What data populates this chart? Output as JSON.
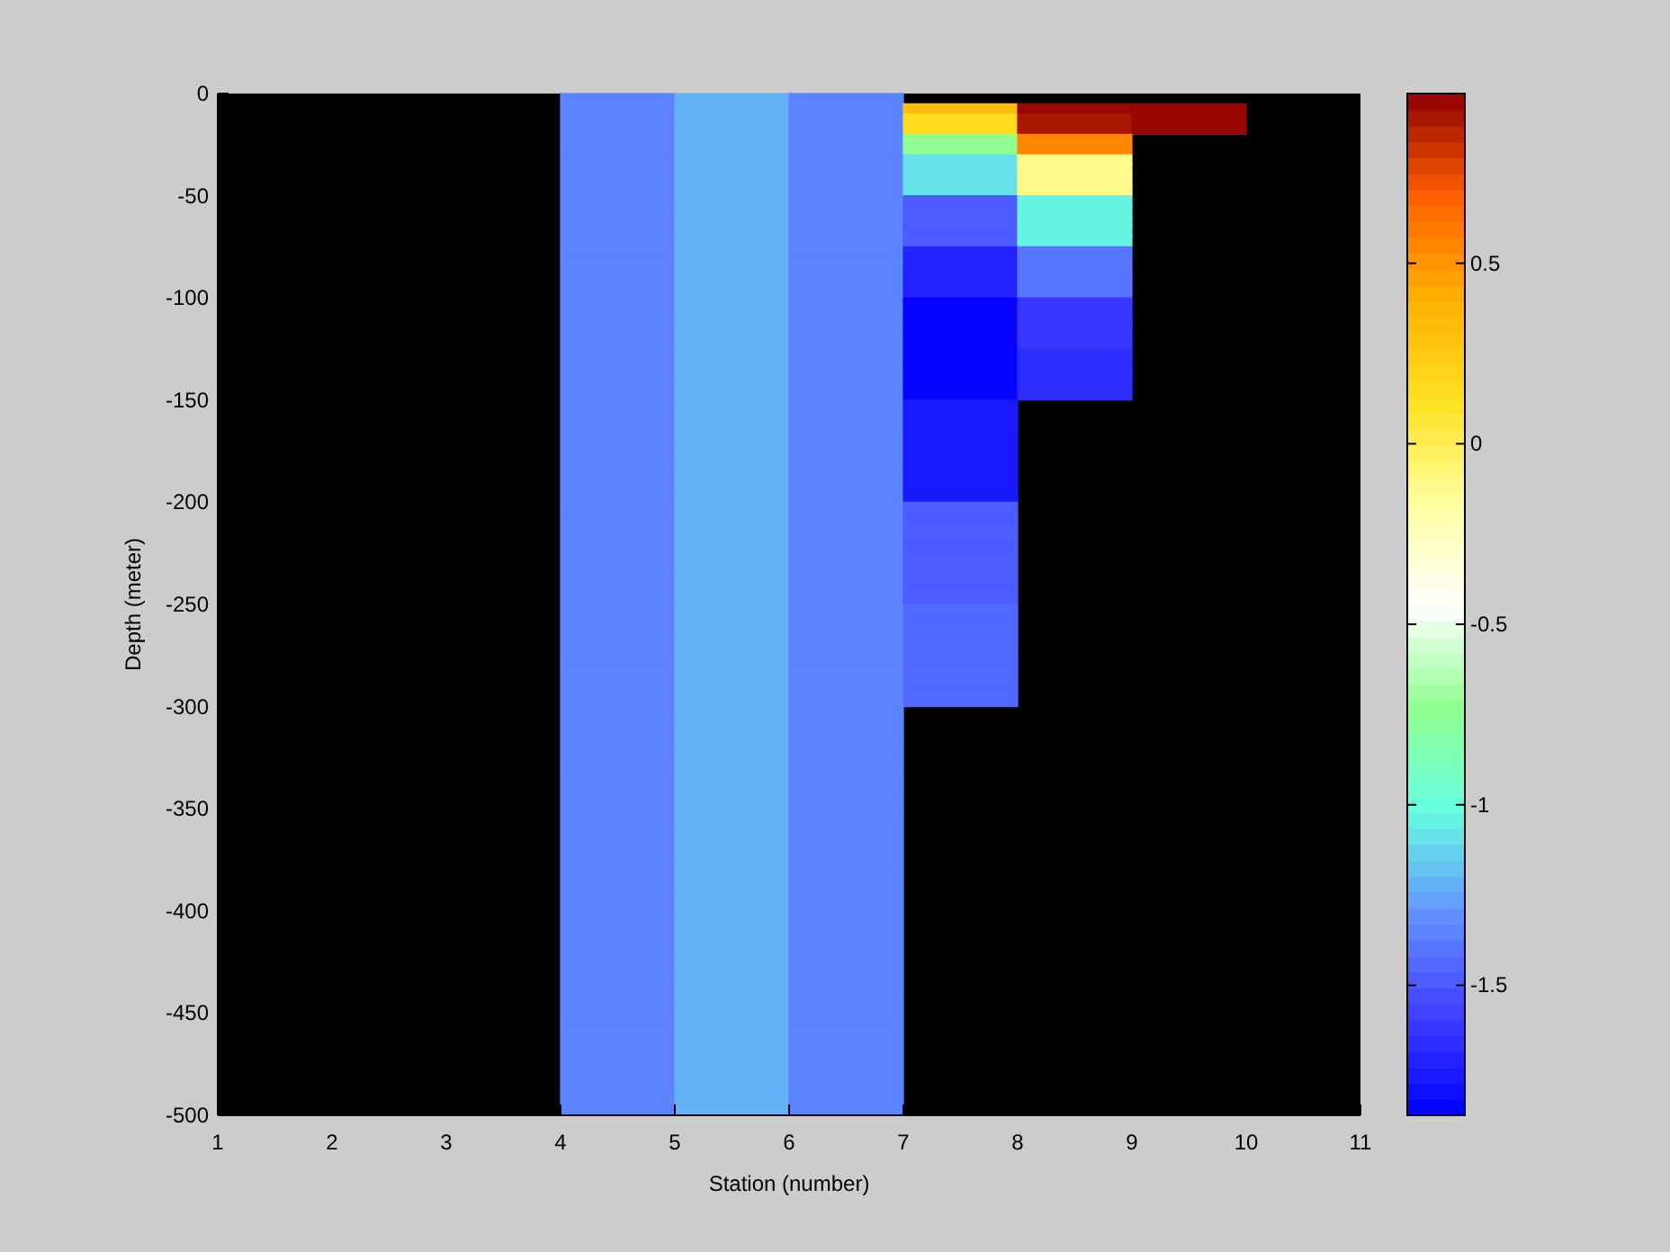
{
  "chart_data": {
    "type": "heatmap",
    "xlabel": "Station (number)",
    "ylabel": "Depth (meter)",
    "cells": [
      [
        null,
        null,
        null,
        -1.33,
        -1.2,
        -1.36,
        null,
        null,
        null,
        null
      ],
      [
        null,
        null,
        null,
        -1.33,
        -1.2,
        -1.36,
        0.35,
        0.95,
        0.95,
        null
      ],
      [
        null,
        null,
        null,
        -1.33,
        -1.2,
        -1.36,
        0.15,
        0.9,
        0.95,
        null
      ],
      [
        null,
        null,
        null,
        -1.33,
        -1.2,
        -1.36,
        0.15,
        0.9,
        0.95,
        null
      ],
      [
        null,
        null,
        null,
        -1.33,
        -1.2,
        -1.36,
        -0.72,
        0.55,
        null,
        null
      ],
      [
        null,
        null,
        null,
        -1.33,
        -1.2,
        -1.36,
        -0.72,
        0.55,
        null,
        null
      ],
      [
        null,
        null,
        null,
        -1.33,
        -1.2,
        -1.36,
        -1.1,
        -0.1,
        null,
        null
      ],
      [
        null,
        null,
        null,
        -1.33,
        -1.2,
        -1.36,
        -1.1,
        -0.1,
        null,
        null
      ],
      [
        null,
        null,
        null,
        -1.33,
        -1.2,
        -1.36,
        -1.1,
        -0.1,
        null,
        null
      ],
      [
        null,
        null,
        null,
        -1.33,
        -1.2,
        -1.36,
        -1.1,
        -0.1,
        null,
        null
      ],
      [
        null,
        null,
        null,
        -1.33,
        -1.2,
        -1.36,
        -1.5,
        -1.05,
        null,
        null
      ],
      [
        null,
        null,
        null,
        -1.33,
        -1.2,
        -1.36,
        -1.5,
        -1.05,
        null,
        null
      ],
      [
        null,
        null,
        null,
        -1.33,
        -1.2,
        -1.36,
        -1.5,
        -1.05,
        null,
        null
      ],
      [
        null,
        null,
        null,
        -1.33,
        -1.2,
        -1.36,
        -1.5,
        -1.05,
        null,
        null
      ],
      [
        null,
        null,
        null,
        -1.33,
        -1.2,
        -1.36,
        -1.5,
        -1.05,
        null,
        null
      ],
      [
        null,
        null,
        null,
        -1.33,
        -1.2,
        -1.36,
        -1.7,
        -1.4,
        null,
        null
      ],
      [
        null,
        null,
        null,
        -1.33,
        -1.2,
        -1.36,
        -1.7,
        -1.4,
        null,
        null
      ],
      [
        null,
        null,
        null,
        -1.33,
        -1.2,
        -1.36,
        -1.7,
        -1.4,
        null,
        null
      ],
      [
        null,
        null,
        null,
        -1.33,
        -1.2,
        -1.36,
        -1.7,
        -1.4,
        null,
        null
      ],
      [
        null,
        null,
        null,
        -1.33,
        -1.2,
        -1.36,
        -1.7,
        -1.4,
        null,
        null
      ],
      [
        null,
        null,
        null,
        -1.33,
        -1.2,
        -1.36,
        -1.84,
        -1.6,
        null,
        null
      ],
      [
        null,
        null,
        null,
        -1.33,
        -1.2,
        -1.36,
        -1.84,
        -1.6,
        null,
        null
      ],
      [
        null,
        null,
        null,
        -1.33,
        -1.2,
        -1.36,
        -1.84,
        -1.6,
        null,
        null
      ],
      [
        null,
        null,
        null,
        -1.33,
        -1.2,
        -1.36,
        -1.84,
        -1.6,
        null,
        null
      ],
      [
        null,
        null,
        null,
        -1.33,
        -1.2,
        -1.36,
        -1.84,
        -1.6,
        null,
        null
      ],
      [
        null,
        null,
        null,
        -1.33,
        -1.2,
        -1.36,
        -1.84,
        -1.65,
        null,
        null
      ],
      [
        null,
        null,
        null,
        -1.33,
        -1.2,
        -1.36,
        -1.84,
        -1.65,
        null,
        null
      ],
      [
        null,
        null,
        null,
        -1.33,
        -1.2,
        -1.36,
        -1.84,
        -1.65,
        null,
        null
      ],
      [
        null,
        null,
        null,
        -1.33,
        -1.2,
        -1.36,
        -1.84,
        -1.65,
        null,
        null
      ],
      [
        null,
        null,
        null,
        -1.33,
        -1.2,
        -1.36,
        -1.84,
        -1.65,
        null,
        null
      ],
      [
        null,
        null,
        null,
        -1.33,
        -1.2,
        -1.36,
        -1.75,
        null,
        null,
        null
      ],
      [
        null,
        null,
        null,
        -1.33,
        -1.2,
        -1.36,
        -1.75,
        null,
        null,
        null
      ],
      [
        null,
        null,
        null,
        -1.33,
        -1.2,
        -1.36,
        -1.75,
        null,
        null,
        null
      ],
      [
        null,
        null,
        null,
        -1.33,
        -1.2,
        -1.36,
        -1.75,
        null,
        null,
        null
      ],
      [
        null,
        null,
        null,
        -1.33,
        -1.2,
        -1.36,
        -1.75,
        null,
        null,
        null
      ],
      [
        null,
        null,
        null,
        -1.33,
        -1.2,
        -1.36,
        -1.75,
        null,
        null,
        null
      ],
      [
        null,
        null,
        null,
        -1.33,
        -1.2,
        -1.36,
        -1.75,
        null,
        null,
        null
      ],
      [
        null,
        null,
        null,
        -1.33,
        -1.2,
        -1.36,
        -1.75,
        null,
        null,
        null
      ],
      [
        null,
        null,
        null,
        -1.33,
        -1.2,
        -1.36,
        -1.75,
        null,
        null,
        null
      ],
      [
        null,
        null,
        null,
        -1.33,
        -1.2,
        -1.36,
        -1.75,
        null,
        null,
        null
      ],
      [
        null,
        null,
        null,
        -1.33,
        -1.2,
        -1.36,
        -1.5,
        null,
        null,
        null
      ],
      [
        null,
        null,
        null,
        -1.33,
        -1.2,
        -1.36,
        -1.5,
        null,
        null,
        null
      ],
      [
        null,
        null,
        null,
        -1.33,
        -1.2,
        -1.36,
        -1.5,
        null,
        null,
        null
      ],
      [
        null,
        null,
        null,
        -1.33,
        -1.2,
        -1.36,
        -1.5,
        null,
        null,
        null
      ],
      [
        null,
        null,
        null,
        -1.33,
        -1.2,
        -1.36,
        -1.5,
        null,
        null,
        null
      ],
      [
        null,
        null,
        null,
        -1.33,
        -1.2,
        -1.36,
        -1.5,
        null,
        null,
        null
      ],
      [
        null,
        null,
        null,
        -1.33,
        -1.2,
        -1.36,
        -1.5,
        null,
        null,
        null
      ],
      [
        null,
        null,
        null,
        -1.33,
        -1.2,
        -1.36,
        -1.5,
        null,
        null,
        null
      ],
      [
        null,
        null,
        null,
        -1.33,
        -1.2,
        -1.36,
        -1.5,
        null,
        null,
        null
      ],
      [
        null,
        null,
        null,
        -1.33,
        -1.2,
        -1.36,
        -1.5,
        null,
        null,
        null
      ],
      [
        null,
        null,
        null,
        -1.33,
        -1.2,
        -1.36,
        -1.42,
        null,
        null,
        null
      ],
      [
        null,
        null,
        null,
        -1.33,
        -1.2,
        -1.36,
        -1.42,
        null,
        null,
        null
      ],
      [
        null,
        null,
        null,
        -1.33,
        -1.2,
        -1.36,
        -1.42,
        null,
        null,
        null
      ],
      [
        null,
        null,
        null,
        -1.33,
        -1.2,
        -1.36,
        -1.42,
        null,
        null,
        null
      ],
      [
        null,
        null,
        null,
        -1.33,
        -1.2,
        -1.36,
        -1.42,
        null,
        null,
        null
      ],
      [
        null,
        null,
        null,
        -1.33,
        -1.2,
        -1.36,
        -1.42,
        null,
        null,
        null
      ],
      [
        null,
        null,
        null,
        -1.33,
        -1.2,
        -1.36,
        -1.42,
        null,
        null,
        null
      ],
      [
        null,
        null,
        null,
        -1.33,
        -1.2,
        -1.36,
        -1.42,
        null,
        null,
        null
      ],
      [
        null,
        null,
        null,
        -1.33,
        -1.2,
        -1.36,
        -1.42,
        null,
        null,
        null
      ],
      [
        null,
        null,
        null,
        -1.33,
        -1.2,
        -1.36,
        -1.42,
        null,
        null,
        null
      ],
      [
        null,
        null,
        null,
        -1.33,
        -1.2,
        -1.36,
        null,
        null,
        null,
        null
      ],
      [
        null,
        null,
        null,
        -1.33,
        -1.2,
        -1.36,
        null,
        null,
        null,
        null
      ],
      [
        null,
        null,
        null,
        -1.33,
        -1.2,
        -1.36,
        null,
        null,
        null,
        null
      ],
      [
        null,
        null,
        null,
        -1.33,
        -1.2,
        -1.36,
        null,
        null,
        null,
        null
      ],
      [
        null,
        null,
        null,
        -1.33,
        -1.2,
        -1.36,
        null,
        null,
        null,
        null
      ],
      [
        null,
        null,
        null,
        -1.33,
        -1.2,
        -1.36,
        null,
        null,
        null,
        null
      ],
      [
        null,
        null,
        null,
        -1.33,
        -1.2,
        -1.36,
        null,
        null,
        null,
        null
      ],
      [
        null,
        null,
        null,
        -1.33,
        -1.2,
        -1.36,
        null,
        null,
        null,
        null
      ],
      [
        null,
        null,
        null,
        -1.33,
        -1.2,
        -1.36,
        null,
        null,
        null,
        null
      ],
      [
        null,
        null,
        null,
        -1.33,
        -1.2,
        -1.36,
        null,
        null,
        null,
        null
      ],
      [
        null,
        null,
        null,
        -1.33,
        -1.2,
        -1.36,
        null,
        null,
        null,
        null
      ],
      [
        null,
        null,
        null,
        -1.33,
        -1.2,
        -1.36,
        null,
        null,
        null,
        null
      ],
      [
        null,
        null,
        null,
        -1.33,
        -1.2,
        -1.36,
        null,
        null,
        null,
        null
      ],
      [
        null,
        null,
        null,
        -1.33,
        -1.2,
        -1.36,
        null,
        null,
        null,
        null
      ],
      [
        null,
        null,
        null,
        -1.33,
        -1.2,
        -1.36,
        null,
        null,
        null,
        null
      ],
      [
        null,
        null,
        null,
        -1.33,
        -1.2,
        -1.36,
        null,
        null,
        null,
        null
      ],
      [
        null,
        null,
        null,
        -1.33,
        -1.2,
        -1.36,
        null,
        null,
        null,
        null
      ],
      [
        null,
        null,
        null,
        -1.33,
        -1.2,
        -1.36,
        null,
        null,
        null,
        null
      ],
      [
        null,
        null,
        null,
        -1.33,
        -1.2,
        -1.36,
        null,
        null,
        null,
        null
      ],
      [
        null,
        null,
        null,
        -1.33,
        -1.2,
        -1.36,
        null,
        null,
        null,
        null
      ],
      [
        null,
        null,
        null,
        -1.33,
        -1.2,
        -1.36,
        null,
        null,
        null,
        null
      ],
      [
        null,
        null,
        null,
        -1.33,
        -1.2,
        -1.36,
        null,
        null,
        null,
        null
      ],
      [
        null,
        null,
        null,
        -1.33,
        -1.2,
        -1.36,
        null,
        null,
        null,
        null
      ],
      [
        null,
        null,
        null,
        -1.33,
        -1.2,
        -1.36,
        null,
        null,
        null,
        null
      ],
      [
        null,
        null,
        null,
        -1.33,
        -1.2,
        -1.36,
        null,
        null,
        null,
        null
      ],
      [
        null,
        null,
        null,
        -1.33,
        -1.2,
        -1.36,
        null,
        null,
        null,
        null
      ],
      [
        null,
        null,
        null,
        -1.33,
        -1.2,
        -1.36,
        null,
        null,
        null,
        null
      ],
      [
        null,
        null,
        null,
        -1.33,
        -1.2,
        -1.36,
        null,
        null,
        null,
        null
      ],
      [
        null,
        null,
        null,
        -1.33,
        -1.2,
        -1.36,
        null,
        null,
        null,
        null
      ],
      [
        null,
        null,
        null,
        -1.33,
        -1.2,
        -1.36,
        null,
        null,
        null,
        null
      ],
      [
        null,
        null,
        null,
        -1.33,
        -1.2,
        -1.36,
        null,
        null,
        null,
        null
      ],
      [
        null,
        null,
        null,
        -1.33,
        -1.2,
        -1.36,
        null,
        null,
        null,
        null
      ],
      [
        null,
        null,
        null,
        -1.33,
        -1.2,
        -1.36,
        null,
        null,
        null,
        null
      ],
      [
        null,
        null,
        null,
        -1.33,
        -1.2,
        -1.36,
        null,
        null,
        null,
        null
      ],
      [
        null,
        null,
        null,
        -1.33,
        -1.2,
        -1.36,
        null,
        null,
        null,
        null
      ],
      [
        null,
        null,
        null,
        -1.33,
        -1.2,
        -1.36,
        null,
        null,
        null,
        null
      ],
      [
        null,
        null,
        null,
        -1.33,
        -1.2,
        -1.36,
        null,
        null,
        null,
        null
      ],
      [
        null,
        null,
        null,
        -1.33,
        -1.2,
        -1.36,
        null,
        null,
        null,
        null
      ],
      [
        null,
        null,
        null,
        -1.33,
        -1.2,
        -1.36,
        null,
        null,
        null,
        null
      ],
      [
        null,
        null,
        null,
        -1.33,
        -1.2,
        -1.36,
        null,
        null,
        null,
        null
      ]
    ],
    "colors": [
      "#0000ff",
      "#4040ff",
      "#6495ff",
      "#66ffe0",
      "#90ff90",
      "#ffffff",
      "#ffffa0",
      "#ffe020",
      "#ffb000",
      "#ff6000",
      "#900000"
    ],
    "xlim": [
      1,
      11
    ],
    "xticks": [
      1,
      2,
      3,
      4,
      5,
      6,
      7,
      8,
      9,
      10,
      11
    ],
    "ylim": [
      -500,
      0
    ],
    "yticks": [
      0,
      -50,
      -100,
      -150,
      -200,
      -250,
      -300,
      -350,
      -400,
      -450,
      -500
    ],
    "clim": [
      -1.86,
      0.97
    ],
    "cticks": [
      -1.5,
      -1,
      -0.5,
      0,
      0.5
    ]
  }
}
